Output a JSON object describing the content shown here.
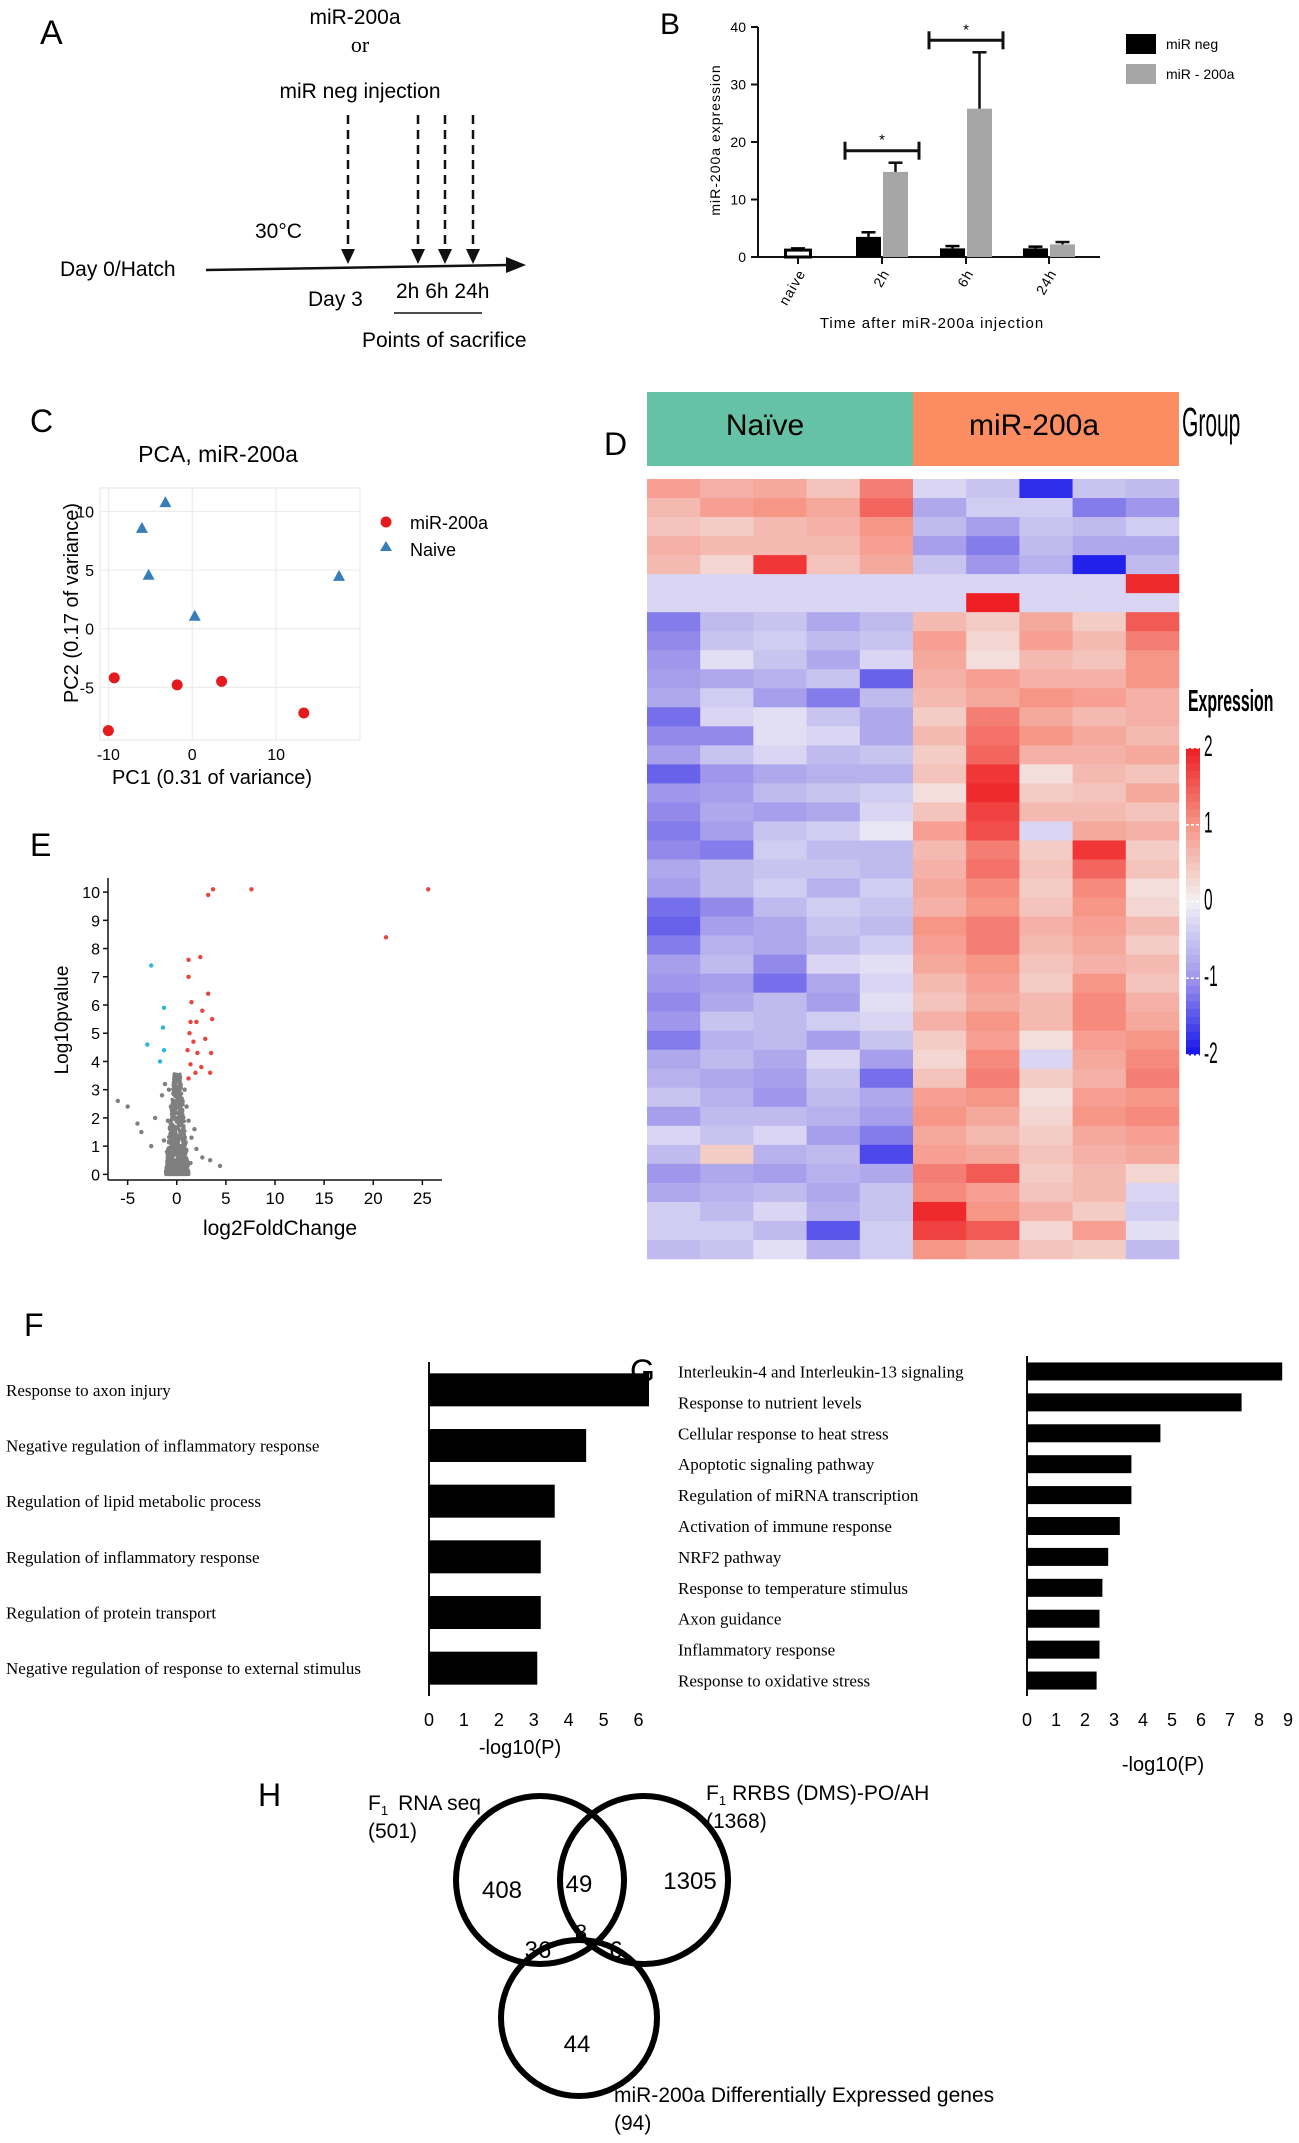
{
  "panels": {
    "A": "A",
    "B": "B",
    "C": "C",
    "D": "D",
    "E": "E",
    "F": "F",
    "G": "G",
    "H": "H"
  },
  "panel_a": {
    "line1": "miR-200a",
    "line2": "or",
    "line3": "miR neg injection",
    "temp": "30°C",
    "start": "Day 0/Hatch",
    "day3": "Day 3",
    "times": "2h 6h 24h",
    "points": "Points of sacrifice"
  },
  "chart_data": [
    {
      "id": "B",
      "type": "bar",
      "title": "",
      "categories": [
        "naive",
        "2h",
        "6h",
        "24h"
      ],
      "series": [
        {
          "name": "miR neg",
          "color": "#000000",
          "values": [
            1.2,
            3.5,
            1.5,
            1.5
          ],
          "errors": [
            0.3,
            0.8,
            0.4,
            0.3
          ]
        },
        {
          "name": "miR - 200a",
          "color": "#a6a6a6",
          "values": [
            null,
            14.8,
            25.8,
            2.2
          ],
          "errors": [
            null,
            1.6,
            9.8,
            0.4
          ]
        }
      ],
      "naive_open_bar": true,
      "ylabel": "miR-200a expression",
      "xlabel": "Time after miR-200a injection",
      "ylim": [
        0,
        40
      ],
      "yticks": [
        0,
        10,
        20,
        30,
        40
      ],
      "significance": [
        {
          "category": "2h",
          "label": "*"
        },
        {
          "category": "6h",
          "label": "*"
        }
      ]
    },
    {
      "id": "C",
      "type": "scatter",
      "title": "PCA, miR-200a",
      "xlabel": "PC1 (0.31 of variance)",
      "ylabel": "PC2 (0.17 of variance)",
      "xlim": [
        -11,
        20
      ],
      "ylim": [
        -9.5,
        12
      ],
      "xticks": [
        -10,
        0,
        10
      ],
      "yticks": [
        -5,
        0,
        5,
        10
      ],
      "series": [
        {
          "name": "miR-200a",
          "color": "#e41a1c",
          "marker": "circle",
          "points": [
            [
              -9.3,
              -4.2
            ],
            [
              -10,
              -8.7
            ],
            [
              -1.8,
              -4.8
            ],
            [
              3.5,
              -4.5
            ],
            [
              13.3,
              -7.2
            ]
          ]
        },
        {
          "name": "Naive",
          "color": "#377eb8",
          "marker": "triangle",
          "points": [
            [
              -3.2,
              10.8
            ],
            [
              -6,
              8.6
            ],
            [
              -5.2,
              4.6
            ],
            [
              0.3,
              1.1
            ],
            [
              17.5,
              4.5
            ]
          ]
        }
      ]
    },
    {
      "id": "D",
      "type": "heatmap",
      "groups": [
        {
          "label": "Naïve",
          "color": "#66c2a5"
        },
        {
          "label": "miR-200a",
          "color": "#fc8d62"
        }
      ],
      "group_title": "Group",
      "legend_title": "Expression",
      "legend_ticks": [
        2,
        1,
        0,
        -1,
        -2
      ],
      "values": [
        [
          0.9,
          0.7,
          0.8,
          0.5,
          1.2,
          -0.3,
          -0.5,
          -1.8,
          -0.5,
          -0.6
        ],
        [
          0.6,
          0.9,
          1.0,
          0.8,
          1.4,
          -0.8,
          -0.4,
          -0.4,
          -1.2,
          -1.0
        ],
        [
          0.5,
          0.4,
          0.6,
          0.7,
          1.0,
          -0.6,
          -0.9,
          -0.5,
          -0.6,
          -0.4
        ],
        [
          0.7,
          0.6,
          0.6,
          0.6,
          0.9,
          -0.9,
          -1.2,
          -0.6,
          -0.8,
          -0.8
        ],
        [
          0.6,
          0.3,
          1.8,
          0.5,
          0.8,
          -0.5,
          -1.0,
          -0.7,
          -1.9,
          -0.6
        ],
        [
          -0.3,
          -0.3,
          -0.3,
          -0.3,
          -0.3,
          -0.3,
          -0.3,
          -0.3,
          -0.3,
          1.9
        ],
        [
          -0.3,
          -0.3,
          -0.3,
          -0.3,
          -0.3,
          -0.3,
          2.0,
          -0.3,
          -0.3,
          -0.3
        ],
        [
          -1.2,
          -0.6,
          -0.5,
          -0.8,
          -0.6,
          0.6,
          0.4,
          0.8,
          0.4,
          1.5
        ],
        [
          -1.1,
          -0.5,
          -0.4,
          -0.6,
          -0.5,
          0.9,
          0.3,
          0.9,
          0.6,
          1.2
        ],
        [
          -1.0,
          -0.2,
          -0.5,
          -0.8,
          -0.3,
          0.8,
          0.2,
          0.6,
          0.5,
          1.0
        ],
        [
          -0.9,
          -0.8,
          -0.7,
          -0.5,
          -1.4,
          0.7,
          0.9,
          0.7,
          0.7,
          1.0
        ],
        [
          -0.8,
          -0.4,
          -0.9,
          -1.2,
          -0.6,
          0.6,
          0.8,
          1.0,
          0.9,
          0.7
        ],
        [
          -1.3,
          -0.3,
          -0.2,
          -0.5,
          -0.8,
          0.4,
          1.2,
          0.8,
          0.6,
          0.7
        ],
        [
          -1.1,
          -1.1,
          -0.2,
          -0.3,
          -0.8,
          0.6,
          1.3,
          1.0,
          0.8,
          0.6
        ],
        [
          -0.9,
          -0.5,
          -0.3,
          -0.6,
          -0.5,
          0.4,
          1.4,
          0.7,
          0.7,
          0.8
        ],
        [
          -1.4,
          -1.0,
          -0.8,
          -0.7,
          -0.7,
          0.5,
          1.8,
          0.2,
          0.6,
          0.5
        ],
        [
          -1.0,
          -0.9,
          -0.6,
          -0.5,
          -0.4,
          0.2,
          1.9,
          0.4,
          0.5,
          0.8
        ],
        [
          -1.1,
          -0.8,
          -0.9,
          -0.8,
          -0.3,
          0.5,
          1.7,
          0.6,
          0.6,
          0.5
        ],
        [
          -1.2,
          -0.9,
          -0.5,
          -0.4,
          -0.1,
          0.9,
          1.6,
          -0.3,
          0.8,
          0.7
        ],
        [
          -1.1,
          -1.2,
          -0.4,
          -0.6,
          -0.6,
          0.6,
          1.2,
          0.4,
          1.8,
          0.4
        ],
        [
          -0.8,
          -0.6,
          -0.5,
          -0.5,
          -0.6,
          0.7,
          1.3,
          0.5,
          1.4,
          0.5
        ],
        [
          -0.9,
          -0.6,
          -0.4,
          -0.7,
          -0.4,
          0.8,
          1.1,
          0.4,
          1.1,
          0.2
        ],
        [
          -1.3,
          -1.1,
          -0.6,
          -0.4,
          -0.5,
          0.7,
          1.0,
          0.5,
          1.0,
          0.3
        ],
        [
          -1.4,
          -0.9,
          -0.8,
          -0.5,
          -0.6,
          1.0,
          1.2,
          0.7,
          0.9,
          0.6
        ],
        [
          -1.2,
          -0.7,
          -0.8,
          -0.6,
          -0.4,
          0.9,
          1.2,
          0.6,
          0.8,
          0.4
        ],
        [
          -0.9,
          -0.6,
          -1.1,
          -0.3,
          -0.2,
          0.8,
          1.0,
          0.5,
          0.7,
          0.6
        ],
        [
          -1.0,
          -0.9,
          -1.3,
          -0.8,
          -0.3,
          0.6,
          0.9,
          0.4,
          1.0,
          0.5
        ],
        [
          -1.1,
          -0.8,
          -0.6,
          -0.9,
          -0.2,
          0.5,
          0.8,
          0.6,
          1.1,
          0.7
        ],
        [
          -1.0,
          -0.5,
          -0.6,
          -0.4,
          -0.3,
          0.7,
          1.0,
          0.6,
          1.1,
          0.8
        ],
        [
          -1.2,
          -0.7,
          -0.6,
          -0.9,
          -0.5,
          0.4,
          0.9,
          0.2,
          0.9,
          1.0
        ],
        [
          -0.8,
          -0.6,
          -0.8,
          -0.3,
          -0.9,
          0.3,
          1.1,
          -0.3,
          0.8,
          1.1
        ],
        [
          -0.7,
          -0.8,
          -0.9,
          -0.5,
          -1.3,
          0.5,
          1.2,
          0.4,
          0.7,
          1.2
        ],
        [
          -0.5,
          -0.7,
          -1.0,
          -0.6,
          -0.8,
          0.9,
          1.0,
          0.2,
          0.9,
          1.0
        ],
        [
          -0.9,
          -0.6,
          -0.6,
          -0.7,
          -0.9,
          1.0,
          0.8,
          0.3,
          1.0,
          1.1
        ],
        [
          -0.3,
          -0.5,
          -0.3,
          -0.9,
          -1.2,
          0.8,
          0.6,
          0.4,
          0.8,
          0.9
        ],
        [
          -0.6,
          0.4,
          -0.7,
          -0.6,
          -1.6,
          0.9,
          0.8,
          0.5,
          0.7,
          0.8
        ],
        [
          -1.0,
          -0.8,
          -0.9,
          -0.7,
          -0.8,
          1.2,
          1.5,
          0.4,
          0.6,
          0.3
        ],
        [
          -0.8,
          -0.7,
          -0.6,
          -0.8,
          -0.5,
          1.1,
          0.9,
          0.5,
          0.6,
          -0.3
        ],
        [
          -0.4,
          -0.6,
          -0.3,
          -0.7,
          -0.5,
          1.9,
          1.0,
          0.7,
          0.4,
          -0.4
        ],
        [
          -0.4,
          -0.4,
          -0.6,
          -1.5,
          -0.4,
          1.7,
          1.5,
          0.3,
          0.9,
          -0.2
        ],
        [
          -0.6,
          -0.5,
          -0.2,
          -0.7,
          -0.4,
          1.0,
          0.8,
          0.5,
          0.4,
          -0.6
        ]
      ]
    },
    {
      "id": "E",
      "type": "scatter",
      "title": "",
      "xlabel": "log2FoldChange",
      "ylabel": "Log10pvalue",
      "xlim": [
        -7,
        27
      ],
      "ylim": [
        -0.2,
        10.5
      ],
      "xticks": [
        -5,
        0,
        5,
        10,
        15,
        20,
        25
      ],
      "yticks": [
        0,
        1,
        2,
        3,
        4,
        5,
        6,
        7,
        8,
        9,
        10
      ],
      "series": [
        {
          "name": "up",
          "color": "#e8453c",
          "points": [
            [
              3.2,
              9.9
            ],
            [
              3.7,
              10.1
            ],
            [
              7.6,
              10.1
            ],
            [
              25.6,
              10.1
            ],
            [
              21.3,
              8.4
            ],
            [
              1.2,
              7.6
            ],
            [
              2.4,
              7.7
            ],
            [
              1.2,
              7.0
            ],
            [
              3.2,
              6.4
            ],
            [
              1.5,
              6.1
            ],
            [
              2.6,
              5.8
            ],
            [
              1.4,
              5.4
            ],
            [
              2.0,
              5.4
            ],
            [
              3.6,
              5.5
            ],
            [
              1.3,
              5.0
            ],
            [
              1.7,
              4.7
            ],
            [
              2.9,
              4.8
            ],
            [
              1.1,
              4.4
            ],
            [
              2.1,
              4.3
            ],
            [
              3.5,
              4.3
            ],
            [
              1.4,
              3.9
            ],
            [
              2.5,
              3.8
            ],
            [
              1.9,
              3.6
            ],
            [
              1.2,
              3.4
            ],
            [
              3.4,
              3.6
            ]
          ]
        },
        {
          "name": "down",
          "color": "#2bb5e0",
          "points": [
            [
              -2.6,
              7.4
            ],
            [
              -1.3,
              5.9
            ],
            [
              -1.4,
              5.2
            ],
            [
              -3.0,
              4.6
            ],
            [
              -1.3,
              4.4
            ],
            [
              -1.7,
              4.0
            ]
          ]
        },
        {
          "name": "ns",
          "color": "#7f7f7f",
          "points": [
            [
              -6.0,
              2.6
            ],
            [
              -5.0,
              2.4
            ],
            [
              -4.0,
              1.8
            ],
            [
              -3.6,
              1.5
            ],
            [
              -2.2,
              2.0
            ],
            [
              -1.5,
              2.8
            ],
            [
              -1.2,
              3.2
            ],
            [
              -0.8,
              3.0
            ],
            [
              -0.6,
              2.4
            ],
            [
              -0.4,
              2.1
            ],
            [
              -0.3,
              1.7
            ],
            [
              -0.2,
              1.3
            ],
            [
              -0.1,
              0.9
            ],
            [
              0.0,
              0.4
            ],
            [
              0.1,
              0.2
            ],
            [
              0.2,
              0.6
            ],
            [
              0.3,
              1.0
            ],
            [
              0.4,
              1.5
            ],
            [
              0.5,
              2.0
            ],
            [
              0.6,
              2.6
            ],
            [
              0.8,
              3.0
            ],
            [
              1.0,
              2.4
            ],
            [
              1.2,
              1.9
            ],
            [
              1.5,
              1.3
            ],
            [
              2.0,
              0.9
            ],
            [
              2.6,
              0.6
            ],
            [
              3.4,
              0.5
            ],
            [
              -0.7,
              0.3
            ],
            [
              -1.0,
              0.8
            ],
            [
              -1.3,
              1.2
            ],
            [
              0.9,
              0.2
            ],
            [
              1.4,
              0.4
            ],
            [
              -0.5,
              1.1
            ],
            [
              0.7,
              1.2
            ],
            [
              -0.2,
              2.5
            ],
            [
              0.3,
              3.1
            ],
            [
              -0.9,
              1.9
            ],
            [
              1.8,
              1.6
            ],
            [
              -2.6,
              1.0
            ],
            [
              4.4,
              0.3
            ]
          ]
        }
      ]
    },
    {
      "id": "F",
      "type": "bar",
      "orientation": "horizontal",
      "categories": [
        "Response to axon injury",
        "Negative regulation of inflammatory response",
        "Regulation of lipid metabolic process",
        "Regulation of inflammatory response",
        "Regulation of protein transport",
        "Negative regulation of response to external stimulus"
      ],
      "values": [
        6.3,
        4.5,
        3.6,
        3.2,
        3.2,
        3.1
      ],
      "xlabel": "-log10(P)",
      "xlim": [
        0,
        6.5
      ],
      "xticks": [
        0,
        1,
        2,
        3,
        4,
        5,
        6
      ]
    },
    {
      "id": "G",
      "type": "bar",
      "orientation": "horizontal",
      "categories": [
        "Interleukin-4 and Interleukin-13 signaling",
        "Response to nutrient levels",
        "Cellular response to heat stress",
        "Apoptotic signaling pathway",
        "Regulation of miRNA transcription",
        "Activation of immune response",
        "NRF2 pathway",
        "Response to temperature stimulus",
        "Axon guidance",
        "Inflammatory response",
        "Response to oxidative stress"
      ],
      "values": [
        8.8,
        7.4,
        4.6,
        3.6,
        3.6,
        3.2,
        2.8,
        2.6,
        2.5,
        2.5,
        2.4
      ],
      "xlabel": "-log10(P)",
      "xlim": [
        0,
        9
      ],
      "xticks": [
        0,
        1,
        2,
        3,
        4,
        5,
        6,
        7,
        8,
        9
      ]
    }
  ],
  "venn": {
    "set_a": {
      "prefix": "F",
      "sub": "1",
      "name": "RNA seq",
      "count": "(501)"
    },
    "set_b": {
      "prefix": "F",
      "sub": "1",
      "name": "RRBS (DMS)-PO/AH",
      "count": "(1368)"
    },
    "set_c": {
      "name": "miR-200a Differentially Expressed genes",
      "count": "(94)"
    },
    "regions": {
      "a_only": "408",
      "b_only": "1305",
      "c_only": "44",
      "ab": "49",
      "ac": "36",
      "bc": "6",
      "abc": "8"
    }
  }
}
